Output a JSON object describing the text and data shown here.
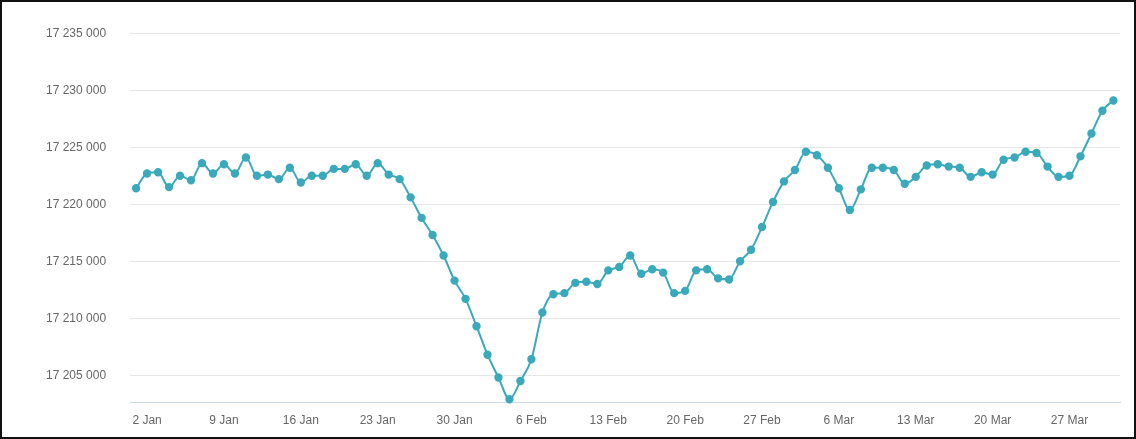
{
  "chart_data": {
    "type": "line",
    "x": [
      "--01-01",
      "--01-02",
      "--01-03",
      "--01-04",
      "--01-05",
      "--01-06",
      "--01-07",
      "--01-08",
      "--01-09",
      "--01-10",
      "--01-11",
      "--01-12",
      "--01-13",
      "--01-14",
      "--01-15",
      "--01-16",
      "--01-17",
      "--01-18",
      "--01-19",
      "--01-20",
      "--01-21",
      "--01-22",
      "--01-23",
      "--01-24",
      "--01-25",
      "--01-26",
      "--01-27",
      "--01-28",
      "--01-29",
      "--01-30",
      "--01-31",
      "--02-01",
      "--02-02",
      "--02-03",
      "--02-04",
      "--02-05",
      "--02-06",
      "--02-07",
      "--02-08",
      "--02-09",
      "--02-10",
      "--02-11",
      "--02-12",
      "--02-13",
      "--02-14",
      "--02-15",
      "--02-16",
      "--02-17",
      "--02-18",
      "--02-19",
      "--02-20",
      "--02-21",
      "--02-22",
      "--02-23",
      "--02-24",
      "--02-25",
      "--02-26",
      "--02-27",
      "--02-28",
      "--03-01",
      "--03-02",
      "--03-03",
      "--03-04",
      "--03-05",
      "--03-06",
      "--03-07",
      "--03-08",
      "--03-09",
      "--03-10",
      "--03-11",
      "--03-12",
      "--03-13",
      "--03-14",
      "--03-15",
      "--03-16",
      "--03-17",
      "--03-18",
      "--03-19",
      "--03-20",
      "--03-21",
      "--03-22",
      "--03-23",
      "--03-24",
      "--03-25",
      "--03-26",
      "--03-27",
      "--03-28",
      "--03-29",
      "--03-30",
      "--03-31"
    ],
    "series": [
      {
        "color": "#3aa9bb",
        "values": [
          17221400,
          17222700,
          17222800,
          17221500,
          17222500,
          17222100,
          17223600,
          17222700,
          17223500,
          17222700,
          17224100,
          17222500,
          17222600,
          17222200,
          17223200,
          17221900,
          17222500,
          17222500,
          17223100,
          17223100,
          17223500,
          17222500,
          17223600,
          17222600,
          17222200,
          17220600,
          17218800,
          17217300,
          17215500,
          17213300,
          17211700,
          17209300,
          17206800,
          17204800,
          17202900,
          17204500,
          17206400,
          17210500,
          17212100,
          17212200,
          17213100,
          17213200,
          17213000,
          17214200,
          17214500,
          17215500,
          17213900,
          17214300,
          17214000,
          17212200,
          17212400,
          17214200,
          17214300,
          17213500,
          17213400,
          17215000,
          17216000,
          17218000,
          17220200,
          17222000,
          17223000,
          17224600,
          17224300,
          17223200,
          17221400,
          17219500,
          17221300,
          17223200,
          17223200,
          17223000,
          17221800,
          17222400,
          17223400,
          17223500,
          17223300,
          17223200,
          17222400,
          17222800,
          17222600,
          17223900,
          17224100,
          17224600,
          17224500,
          17223300,
          17222400,
          17222500,
          17224200,
          17226200,
          17228200,
          17229100
        ]
      }
    ],
    "xlim": [
      "--01-01",
      "--03-31"
    ],
    "xticks": [
      {
        "value": "--01-02",
        "label": "2 Jan"
      },
      {
        "value": "--01-09",
        "label": "9 Jan"
      },
      {
        "value": "--01-16",
        "label": "16 Jan"
      },
      {
        "value": "--01-23",
        "label": "23 Jan"
      },
      {
        "value": "--01-30",
        "label": "30 Jan"
      },
      {
        "value": "--02-06",
        "label": "6 Feb"
      },
      {
        "value": "--02-13",
        "label": "13 Feb"
      },
      {
        "value": "--02-20",
        "label": "20 Feb"
      },
      {
        "value": "--02-27",
        "label": "27 Feb"
      },
      {
        "value": "--03-06",
        "label": "6 Mar"
      },
      {
        "value": "--03-13",
        "label": "13 Mar"
      },
      {
        "value": "--03-20",
        "label": "20 Mar"
      },
      {
        "value": "--03-27",
        "label": "27 Mar"
      }
    ],
    "ylim": [
      17202600,
      17235000
    ],
    "yticks": [
      {
        "value": 17205000,
        "label": "17 205 000"
      },
      {
        "value": 17210000,
        "label": "17 210 000"
      },
      {
        "value": 17215000,
        "label": "17 215 000"
      },
      {
        "value": 17220000,
        "label": "17 220 000"
      },
      {
        "value": 17225000,
        "label": "17 225 000"
      },
      {
        "value": 17230000,
        "label": "17 230 000"
      },
      {
        "value": 17235000,
        "label": "17 235 000"
      }
    ],
    "grid": "y",
    "legend": false,
    "marker": "circle",
    "line_style": "solid"
  }
}
